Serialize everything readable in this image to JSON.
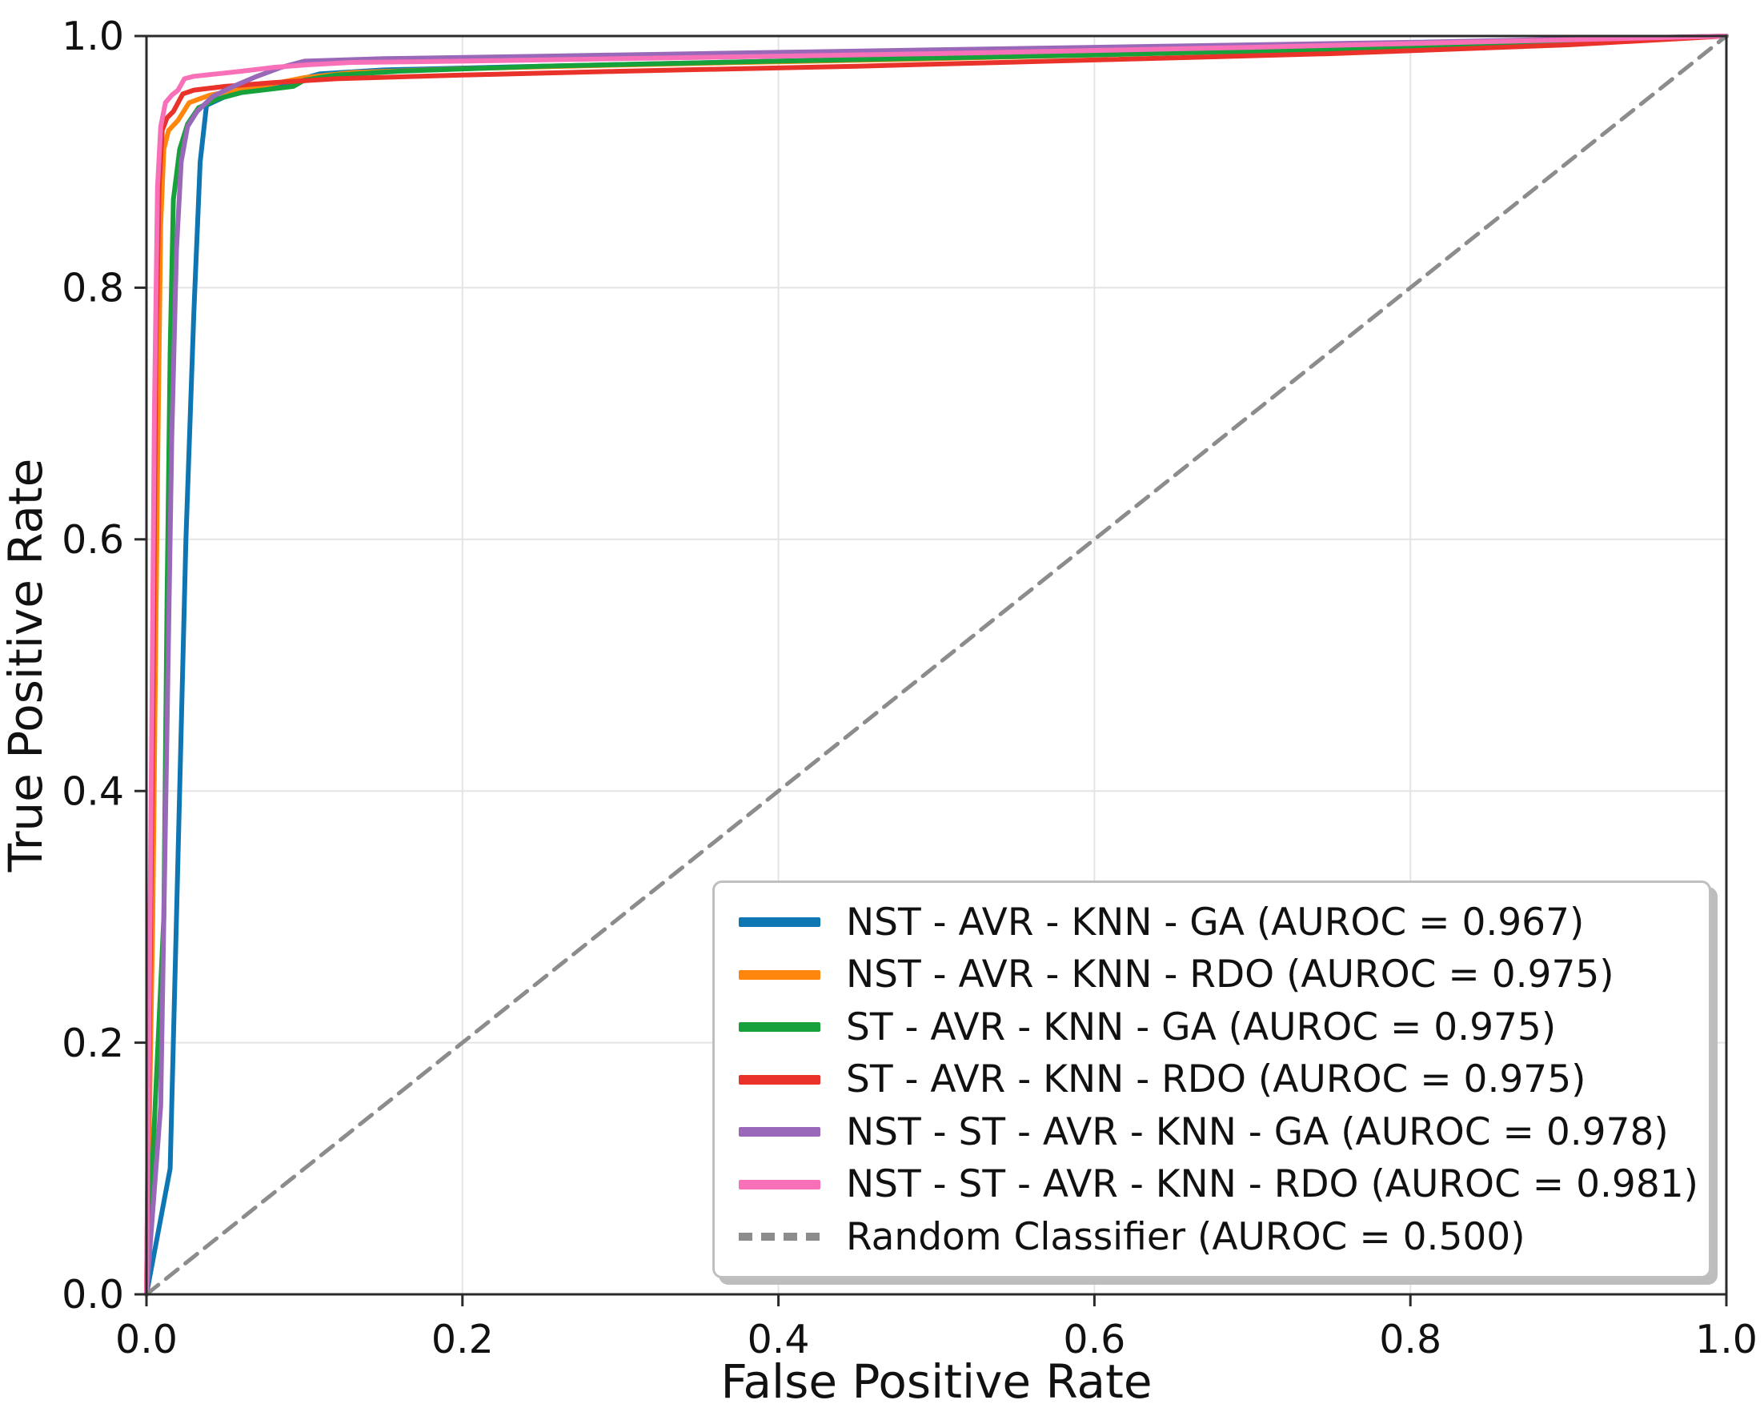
{
  "chart_data": {
    "type": "line",
    "title": "",
    "xlabel": "False Positive Rate",
    "ylabel": "True Positive Rate",
    "xlim": [
      0.0,
      1.0
    ],
    "ylim": [
      0.0,
      1.0
    ],
    "x_ticks": [
      0.0,
      0.2,
      0.4,
      0.6,
      0.8,
      1.0
    ],
    "y_ticks": [
      0.0,
      0.2,
      0.4,
      0.6,
      0.8,
      1.0
    ],
    "grid": true,
    "grid_color": "#e4e4e4",
    "spine_color": "#2b2b2b",
    "legend_position": "lower right",
    "series": [
      {
        "name": "NST - AVR - KNN - GA (AUROC = 0.967)",
        "auroc": 0.967,
        "color": "#0f76b4",
        "dash": false,
        "points": [
          [
            0,
            0
          ],
          [
            0.015,
            0.1
          ],
          [
            0.02,
            0.35
          ],
          [
            0.025,
            0.6
          ],
          [
            0.03,
            0.78
          ],
          [
            0.034,
            0.9
          ],
          [
            0.038,
            0.945
          ],
          [
            0.05,
            0.952
          ],
          [
            0.07,
            0.958
          ],
          [
            0.09,
            0.963
          ],
          [
            0.11,
            0.97
          ],
          [
            0.15,
            0.973
          ],
          [
            0.25,
            0.976
          ],
          [
            0.4,
            0.98
          ],
          [
            0.6,
            0.986
          ],
          [
            0.8,
            0.992
          ],
          [
            1,
            1
          ]
        ]
      },
      {
        "name": "NST - AVR - KNN - RDO (AUROC = 0.975)",
        "auroc": 0.975,
        "color": "#ff860d",
        "dash": false,
        "points": [
          [
            0,
            0
          ],
          [
            0.004,
            0.3
          ],
          [
            0.007,
            0.65
          ],
          [
            0.009,
            0.85
          ],
          [
            0.011,
            0.91
          ],
          [
            0.014,
            0.925
          ],
          [
            0.02,
            0.933
          ],
          [
            0.027,
            0.947
          ],
          [
            0.04,
            0.953
          ],
          [
            0.06,
            0.958
          ],
          [
            0.08,
            0.962
          ],
          [
            0.1,
            0.967
          ],
          [
            0.13,
            0.971
          ],
          [
            0.2,
            0.974
          ],
          [
            0.3,
            0.977
          ],
          [
            0.5,
            0.982
          ],
          [
            0.7,
            0.988
          ],
          [
            0.9,
            0.995
          ],
          [
            1,
            1
          ]
        ]
      },
      {
        "name": "ST - AVR - KNN - GA (AUROC = 0.975)",
        "auroc": 0.975,
        "color": "#16a13a",
        "dash": false,
        "points": [
          [
            0,
            0
          ],
          [
            0.011,
            0.3
          ],
          [
            0.013,
            0.55
          ],
          [
            0.015,
            0.75
          ],
          [
            0.017,
            0.87
          ],
          [
            0.021,
            0.91
          ],
          [
            0.026,
            0.93
          ],
          [
            0.033,
            0.943
          ],
          [
            0.045,
            0.95
          ],
          [
            0.06,
            0.955
          ],
          [
            0.08,
            0.958
          ],
          [
            0.093,
            0.96
          ],
          [
            0.1,
            0.965
          ],
          [
            0.12,
            0.969
          ],
          [
            0.16,
            0.972
          ],
          [
            0.25,
            0.976
          ],
          [
            0.4,
            0.98
          ],
          [
            0.6,
            0.985
          ],
          [
            0.8,
            0.991
          ],
          [
            1,
            1
          ]
        ]
      },
      {
        "name": "ST - AVR - KNN - RDO (AUROC = 0.975)",
        "auroc": 0.975,
        "color": "#e8322a",
        "dash": false,
        "points": [
          [
            0,
            0
          ],
          [
            0.004,
            0.45
          ],
          [
            0.006,
            0.75
          ],
          [
            0.008,
            0.88
          ],
          [
            0.01,
            0.925
          ],
          [
            0.013,
            0.935
          ],
          [
            0.017,
            0.94
          ],
          [
            0.02,
            0.947
          ],
          [
            0.023,
            0.954
          ],
          [
            0.03,
            0.957
          ],
          [
            0.05,
            0.96
          ],
          [
            0.08,
            0.963
          ],
          [
            0.12,
            0.966
          ],
          [
            0.2,
            0.969
          ],
          [
            0.3,
            0.972
          ],
          [
            0.45,
            0.976
          ],
          [
            0.6,
            0.981
          ],
          [
            0.75,
            0.986
          ],
          [
            0.9,
            0.993
          ],
          [
            1,
            1
          ]
        ]
      },
      {
        "name": "NST - ST - AVR - KNN - GA (AUROC = 0.978)",
        "auroc": 0.978,
        "color": "#9a68b8",
        "dash": false,
        "points": [
          [
            0,
            0
          ],
          [
            0.009,
            0.15
          ],
          [
            0.013,
            0.45
          ],
          [
            0.016,
            0.68
          ],
          [
            0.019,
            0.83
          ],
          [
            0.022,
            0.9
          ],
          [
            0.026,
            0.928
          ],
          [
            0.032,
            0.94
          ],
          [
            0.042,
            0.952
          ],
          [
            0.055,
            0.96
          ],
          [
            0.07,
            0.968
          ],
          [
            0.085,
            0.975
          ],
          [
            0.1,
            0.98
          ],
          [
            0.15,
            0.982
          ],
          [
            0.25,
            0.984
          ],
          [
            0.4,
            0.987
          ],
          [
            0.6,
            0.991
          ],
          [
            0.8,
            0.995
          ],
          [
            1,
            1
          ]
        ]
      },
      {
        "name": "NST - ST - AVR - KNN - RDO (AUROC = 0.981)",
        "auroc": 0.981,
        "color": "#f870b8",
        "dash": false,
        "points": [
          [
            0,
            0
          ],
          [
            0.003,
            0.4
          ],
          [
            0.005,
            0.7
          ],
          [
            0.007,
            0.88
          ],
          [
            0.009,
            0.928
          ],
          [
            0.012,
            0.947
          ],
          [
            0.016,
            0.953
          ],
          [
            0.02,
            0.957
          ],
          [
            0.024,
            0.966
          ],
          [
            0.03,
            0.968
          ],
          [
            0.045,
            0.97
          ],
          [
            0.06,
            0.972
          ],
          [
            0.08,
            0.975
          ],
          [
            0.1,
            0.977
          ],
          [
            0.13,
            0.979
          ],
          [
            0.2,
            0.98
          ],
          [
            0.3,
            0.982
          ],
          [
            0.5,
            0.986
          ],
          [
            0.7,
            0.991
          ],
          [
            0.9,
            0.997
          ],
          [
            1,
            1
          ]
        ]
      },
      {
        "name": "Random Classifier (AUROC = 0.500)",
        "auroc": 0.5,
        "color": "#8c8c8c",
        "dash": true,
        "points": [
          [
            0,
            0
          ],
          [
            1,
            1
          ]
        ]
      }
    ]
  }
}
